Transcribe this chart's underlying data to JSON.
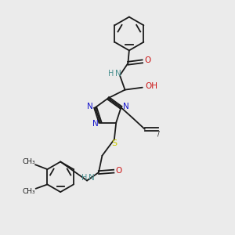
{
  "background_color": "#ebebeb",
  "bond_color": "#1a1a1a",
  "nitrogen_color": "#1414cc",
  "oxygen_color": "#cc1414",
  "sulfur_color": "#cccc00",
  "nh_color": "#4a9090",
  "h_color": "#4a9090",
  "figsize": [
    3.0,
    3.0
  ],
  "dpi": 100,
  "xlim": [
    0,
    10
  ],
  "ylim": [
    0,
    10
  ]
}
